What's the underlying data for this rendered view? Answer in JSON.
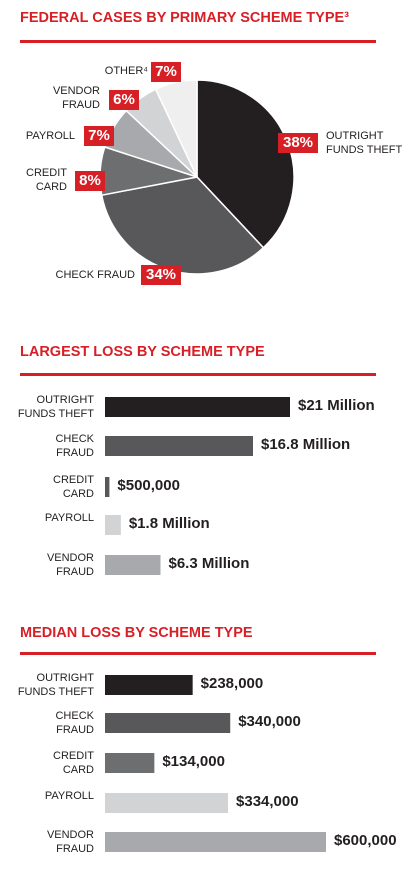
{
  "chart_data": [
    {
      "type": "pie",
      "title": "FEDERAL CASES BY PRIMARY SCHEME TYPE³",
      "categories": [
        "OUTRIGHT FUNDS THEFT",
        "CHECK FRAUD",
        "CREDIT CARD",
        "PAYROLL",
        "VENDOR FRAUD",
        "OTHER⁴"
      ],
      "values": [
        38,
        34,
        8,
        7,
        6,
        7
      ],
      "value_labels": [
        "38%",
        "34%",
        "8%",
        "7%",
        "6%",
        "7%"
      ],
      "colors": [
        "#231f20",
        "#58585a",
        "#6d6e70",
        "#a7a9ac",
        "#d1d3d4",
        "#efeff0"
      ]
    },
    {
      "type": "bar",
      "orientation": "horizontal",
      "title": "LARGEST LOSS BY SCHEME TYPE",
      "categories": [
        "OUTRIGHT FUNDS THEFT",
        "CHECK FRAUD",
        "CREDIT CARD",
        "PAYROLL",
        "VENDOR FRAUD"
      ],
      "values": [
        21000000,
        16800000,
        500000,
        1800000,
        6300000
      ],
      "value_labels": [
        "$21 Million",
        "$16.8 Million",
        "$500,000",
        "$1.8 Million",
        "$6.3 Million"
      ],
      "colors": [
        "#231f20",
        "#58585a",
        "#58585a",
        "#d1d3d4",
        "#a7a9ac"
      ]
    },
    {
      "type": "bar",
      "orientation": "horizontal",
      "title": "MEDIAN LOSS BY SCHEME TYPE",
      "categories": [
        "OUTRIGHT FUNDS THEFT",
        "CHECK FRAUD",
        "CREDIT CARD",
        "PAYROLL",
        "VENDOR FRAUD"
      ],
      "values": [
        238000,
        340000,
        134000,
        334000,
        600000
      ],
      "value_labels": [
        "$238,000",
        "$340,000",
        "$134,000",
        "$334,000",
        "$600,000"
      ],
      "colors": [
        "#231f20",
        "#58585a",
        "#6d6e70",
        "#d1d3d4",
        "#a7a9ac"
      ]
    }
  ]
}
